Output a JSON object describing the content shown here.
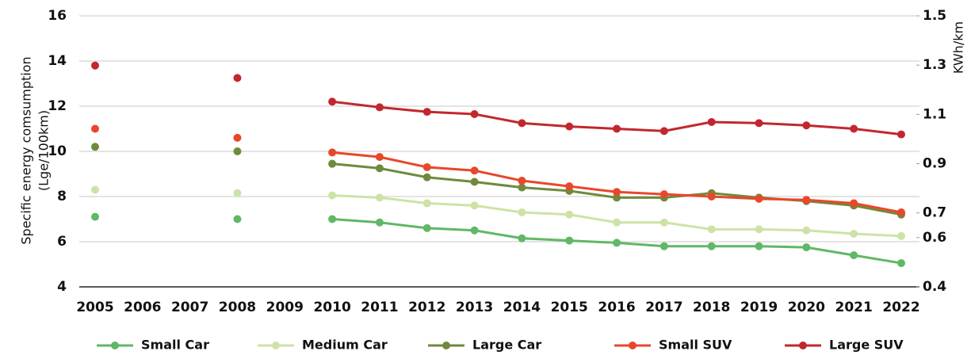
{
  "chart_data": {
    "type": "line",
    "ylabel": [
      "Specific energy comsumption",
      "(Lge/100km)"
    ],
    "y2label": "KWh/km",
    "categories": [
      "2005",
      "2006",
      "2007",
      "2008",
      "2009",
      "2010",
      "2011",
      "2012",
      "2013",
      "2014",
      "2015",
      "2016",
      "2017",
      "2018",
      "2019",
      "2020",
      "2021",
      "2022"
    ],
    "ylim": [
      4,
      16
    ],
    "yticks": [
      4,
      6,
      8,
      10,
      12,
      14,
      16
    ],
    "y2lim": [
      0.4,
      1.5
    ],
    "y2ticks": [
      0.4,
      0.6,
      0.7,
      0.9,
      1.1,
      1.3,
      1.5
    ],
    "grid": true,
    "legend": "bottom",
    "series": [
      {
        "name": "Small Car",
        "color": "#5fb865",
        "values": [
          7.1,
          null,
          null,
          7.0,
          null,
          7.0,
          6.85,
          6.6,
          6.5,
          6.15,
          6.05,
          5.95,
          5.8,
          5.8,
          5.8,
          5.75,
          5.4,
          5.05
        ]
      },
      {
        "name": "Medium Car",
        "color": "#cde3a6",
        "values": [
          8.3,
          null,
          null,
          8.15,
          null,
          8.05,
          7.95,
          7.7,
          7.6,
          7.3,
          7.2,
          6.85,
          6.85,
          6.55,
          6.55,
          6.5,
          6.35,
          6.25
        ]
      },
      {
        "name": "Large Car",
        "color": "#6f8a3c",
        "values": [
          10.2,
          null,
          null,
          10.0,
          null,
          9.45,
          9.25,
          8.85,
          8.65,
          8.4,
          8.25,
          7.95,
          7.95,
          8.15,
          7.95,
          7.8,
          7.6,
          7.2
        ]
      },
      {
        "name": "Small SUV",
        "color": "#e8472b",
        "values": [
          11.0,
          null,
          null,
          10.6,
          null,
          9.95,
          9.75,
          9.3,
          9.15,
          8.7,
          8.45,
          8.2,
          8.1,
          8.0,
          7.9,
          7.85,
          7.7,
          7.3
        ]
      },
      {
        "name": "Large SUV",
        "color": "#c1282e",
        "values": [
          13.8,
          null,
          null,
          13.25,
          null,
          12.2,
          11.95,
          11.75,
          11.65,
          11.25,
          11.1,
          11.0,
          10.9,
          11.3,
          11.25,
          11.15,
          11.0,
          10.75
        ]
      }
    ]
  }
}
